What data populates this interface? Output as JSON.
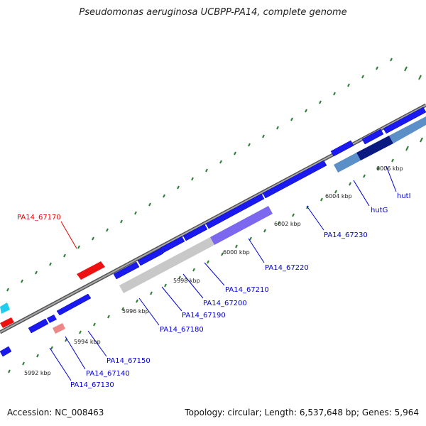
{
  "header": {
    "title": "Pseudomonas aeruginosa UCBPP-PA14, complete genome"
  },
  "footer": {
    "accession": "Accession: NC_008463",
    "summary": "Topology: circular; Length: 6,537,648 bp; Genes: 5,964"
  },
  "scale_labels": [
    "5992 kbp",
    "5994 kbp",
    "5996 kbp",
    "5998 kbp",
    "6000 kbp",
    "6002 kbp",
    "6004 kbp",
    "6006 kbp"
  ],
  "gene_labels": [
    {
      "text": "PA14_67170",
      "color": "#dd0000"
    },
    {
      "text": "PA14_67130",
      "color": "#0000cc"
    },
    {
      "text": "PA14_67140",
      "color": "#0000cc"
    },
    {
      "text": "PA14_67150",
      "color": "#0000cc"
    },
    {
      "text": "PA14_67180",
      "color": "#0000cc"
    },
    {
      "text": "PA14_67190",
      "color": "#0000cc"
    },
    {
      "text": "PA14_67200",
      "color": "#0000cc"
    },
    {
      "text": "PA14_67210",
      "color": "#0000cc"
    },
    {
      "text": "PA14_67220",
      "color": "#0000cc"
    },
    {
      "text": "PA14_67230",
      "color": "#0000cc"
    },
    {
      "text": "hutG",
      "color": "#0000cc"
    },
    {
      "text": "hutI",
      "color": "#0000cc"
    }
  ],
  "colors": {
    "gene_forward": "#1a1af0",
    "gene_red": "#ee1111",
    "gene_cyan": "#22ccee",
    "backbone": "#888888",
    "tick": "#2e7d32",
    "operon_grey": "#c8c8c8",
    "operon_purple": "#7b68ee",
    "operon_steel": "#5b8fc8",
    "operon_navy": "#0a1a80"
  }
}
